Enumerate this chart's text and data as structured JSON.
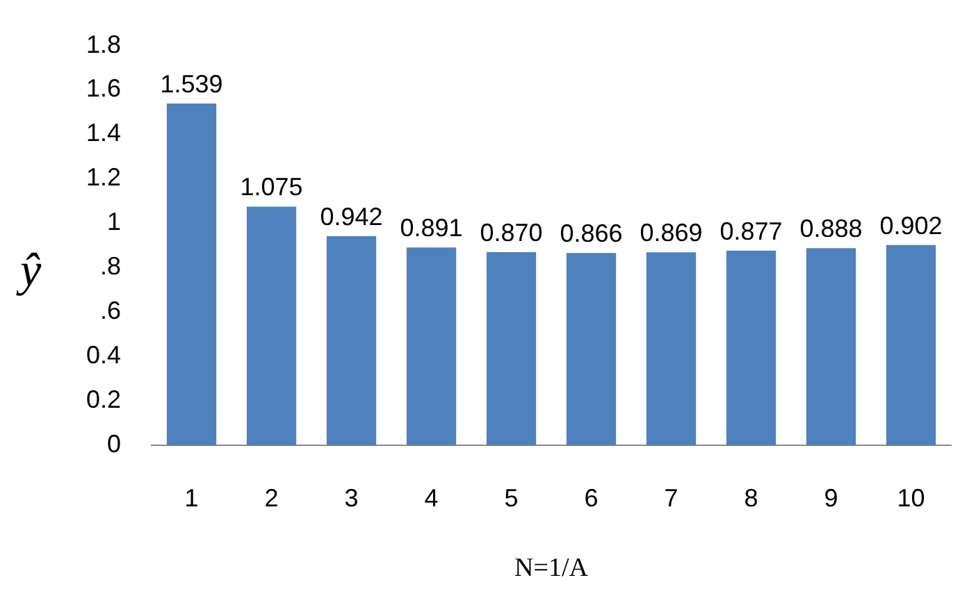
{
  "chart_data": {
    "type": "bar",
    "xlabel": "N=1/A",
    "ylabel": "ŷ",
    "categories": [
      "1",
      "2",
      "3",
      "4",
      "5",
      "6",
      "7",
      "8",
      "9",
      "10"
    ],
    "values": [
      1.539,
      1.075,
      0.942,
      0.891,
      0.87,
      0.866,
      0.869,
      0.877,
      0.888,
      0.902
    ],
    "value_labels": [
      "1.539",
      "1.075",
      "0.942",
      "0.891",
      "0.870",
      "0.866",
      "0.869",
      "0.877",
      "0.888",
      "0.902"
    ],
    "color": "#4f81bd",
    "ylim": [
      0,
      1.8
    ],
    "yticks": [
      0,
      0.2,
      0.4,
      {
        "value": 0.6,
        "label": ".6"
      },
      {
        "value": 0.8,
        "label": ".8"
      },
      1,
      1.2,
      1.4,
      1.6,
      1.8
    ],
    "grid": false,
    "legend": false
  }
}
